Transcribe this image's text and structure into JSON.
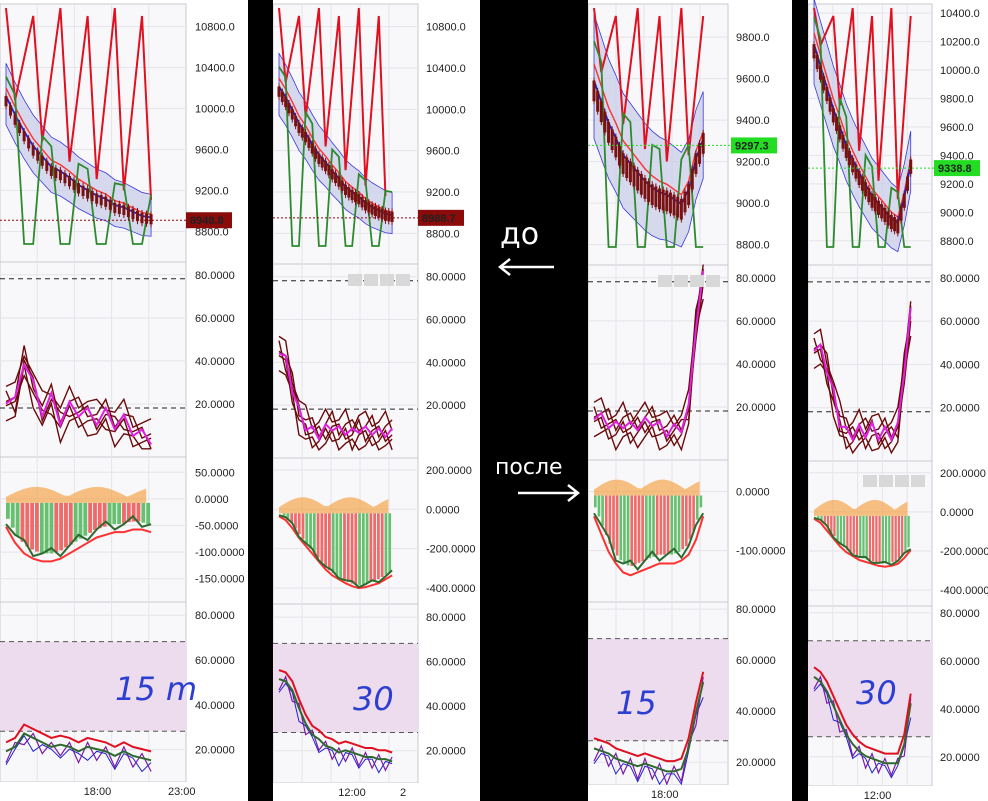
{
  "colors": {
    "separator": "#000000",
    "panel_bg": "#f8f8fa",
    "grid": "#e4e4ea",
    "border": "#c8c8d0",
    "ribbon_fill": "#c8cbe8",
    "ribbon_edge": "#3a3ad8",
    "ma_red": "#ff3030",
    "ma_blue": "#2020d0",
    "zigzag_red": "#e01020",
    "zigzag_green": "#2e8a2e",
    "candle": "#7a1010",
    "stoch_dark": "#6a0a0a",
    "stoch_magenta": "#e020e0",
    "hist_green": "#66c070",
    "hist_red": "#f06a6a",
    "hist_orange": "#f59a30",
    "rsi_band": "#ecdcee",
    "rsi_red": "#e01020",
    "rsi_green": "#2e6a2e",
    "rsi_purple": "#7a1aa8",
    "marker_red": "#8b0a0a",
    "marker_green": "#22dd22",
    "handwriting": "#2d3fd0"
  },
  "panels": [
    {
      "price_axis": [
        "10800.0",
        "10400.0",
        "10000.0",
        "9600.0",
        "9200.0",
        "8800.0"
      ],
      "price_marker": "8948.8",
      "stoch_axis": [
        "80.0000",
        "60.0000",
        "40.0000",
        "20.0000"
      ],
      "macd_axis": [
        "50.0000",
        "0.0000",
        "-50.0000",
        "-100.0000",
        "-150.0000"
      ],
      "rsi_axis": [
        "80.0000",
        "60.0000",
        "40.0000",
        "20.0000"
      ],
      "time_labels": [
        "18:00",
        "23:00"
      ],
      "timeframe_note": "15 m",
      "icon_box": false
    },
    {
      "price_axis": [
        "10800.0",
        "10400.0",
        "10000.0",
        "9600.0",
        "9200.0",
        "8800.0"
      ],
      "price_marker": "8988.7",
      "stoch_axis": [
        "80.0000",
        "60.0000",
        "40.0000",
        "20.0000"
      ],
      "macd_axis": [
        "200.0000",
        "0.0000",
        "-200.0000",
        "-400.0000"
      ],
      "rsi_axis": [
        "80.0000",
        "60.0000",
        "40.0000",
        "20.0000"
      ],
      "time_labels": [
        "12:00",
        "2"
      ],
      "timeframe_note": "30",
      "icon_box": true
    },
    {
      "price_axis": [
        "9800.0",
        "9600.0",
        "9400.0",
        "9200.0",
        "9000.0",
        "8800.0"
      ],
      "price_marker": "9297.3",
      "stoch_axis": [
        "80.0000",
        "60.0000",
        "40.0000",
        "20.0000"
      ],
      "macd_axis": [
        "0.0000",
        "-100.0000"
      ],
      "rsi_axis": [
        "80.0000",
        "60.0000",
        "40.0000",
        "20.0000"
      ],
      "time_labels": [
        "18:00"
      ],
      "timeframe_note": "15",
      "icon_box": true
    },
    {
      "price_axis": [
        "10400.0",
        "10200.0",
        "10000.0",
        "9800.0",
        "9600.0",
        "9400.0",
        "9200.0",
        "9000.0",
        "8800.0"
      ],
      "price_marker": "9338.8",
      "stoch_axis": [
        "80.0000",
        "60.0000",
        "40.0000",
        "20.0000"
      ],
      "macd_axis": [
        "200.0000",
        "0.0000",
        "-200.0000",
        "-400.0000"
      ],
      "rsi_axis": [
        "80.0000",
        "60.0000",
        "40.0000",
        "20.0000"
      ],
      "time_labels": [
        "12:00"
      ],
      "timeframe_note": "30",
      "icon_box": true
    }
  ],
  "notes": {
    "before": "до",
    "after": "после"
  },
  "chart_data": [
    {
      "type": "line",
      "axes": {
        "price_range": [
          8600,
          11000
        ],
        "stoch_range": [
          0,
          85
        ],
        "macd_range": [
          -175,
          75
        ],
        "rsi_range": [
          10,
          85
        ]
      },
      "series": [
        {
          "values": [
            10100,
            9920,
            9760,
            9620,
            9520,
            9420,
            9380,
            9320,
            9250,
            9200,
            9150,
            9120,
            9060,
            9040,
            9000,
            8960,
            8948.8
          ]
        },
        {
          "values": [
            24,
            22,
            42,
            30,
            18,
            24,
            14,
            20,
            18,
            17,
            14,
            17,
            12,
            14,
            9,
            7,
            5
          ]
        },
        {
          "values": [
            -30,
            -60,
            -80,
            -90,
            -95,
            -95,
            -90,
            -80,
            -70,
            -60,
            -50,
            -45,
            -40,
            -40,
            -35,
            -35,
            -40
          ]
        },
        {
          "values": [
            22,
            24,
            30,
            28,
            26,
            24,
            25,
            24,
            22,
            24,
            23,
            22,
            20,
            22,
            20,
            19,
            18
          ]
        }
      ]
    },
    {
      "type": "line",
      "axes": {
        "price_range": [
          8600,
          11000
        ],
        "stoch_range": [
          0,
          85
        ],
        "macd_range": [
          -430,
          250
        ],
        "rsi_range": [
          10,
          85
        ]
      },
      "series": [
        {
          "values": [
            10200,
            10100,
            9980,
            9850,
            9760,
            9650,
            9550,
            9480,
            9400,
            9330,
            9250,
            9200,
            9160,
            9100,
            9060,
            9030,
            9000,
            8988.7
          ]
        },
        {
          "values": [
            48,
            42,
            30,
            18,
            12,
            9,
            8,
            10,
            12,
            9,
            10,
            8,
            11,
            9,
            10,
            8,
            9,
            8
          ]
        },
        {
          "values": [
            0,
            -20,
            -60,
            -110,
            -150,
            -190,
            -230,
            -270,
            -300,
            -320,
            -340,
            -355,
            -365,
            -360,
            -350,
            -340,
            -320,
            -300
          ]
        },
        {
          "values": [
            55,
            54,
            50,
            42,
            35,
            30,
            28,
            25,
            24,
            22,
            23,
            22,
            21,
            20,
            20,
            19,
            19,
            18
          ]
        }
      ]
    },
    {
      "type": "line",
      "axes": {
        "price_range": [
          8750,
          9950
        ],
        "stoch_range": [
          0,
          85
        ],
        "macd_range": [
          -170,
          50
        ],
        "rsi_range": [
          15,
          82
        ]
      },
      "series": [
        {
          "values": [
            9550,
            9450,
            9350,
            9280,
            9200,
            9160,
            9120,
            9080,
            9050,
            9030,
            9020,
            9000,
            8980,
            9050,
            9200,
            9297.3
          ]
        },
        {
          "values": [
            18,
            16,
            14,
            12,
            14,
            12,
            13,
            14,
            15,
            12,
            10,
            11,
            12,
            20,
            60,
            82
          ]
        },
        {
          "values": [
            -20,
            -50,
            -80,
            -100,
            -115,
            -120,
            -115,
            -110,
            -105,
            -100,
            -100,
            -100,
            -95,
            -85,
            -60,
            -20
          ]
        },
        {
          "values": [
            28,
            27,
            26,
            24,
            23,
            22,
            21,
            22,
            21,
            20,
            19,
            19,
            20,
            28,
            42,
            54
          ]
        }
      ]
    },
    {
      "type": "line",
      "axes": {
        "price_range": [
          8700,
          10450
        ],
        "stoch_range": [
          0,
          85
        ],
        "macd_range": [
          -430,
          250
        ],
        "rsi_range": [
          12,
          82
        ]
      },
      "series": [
        {
          "values": [
            10150,
            10000,
            9850,
            9700,
            9580,
            9450,
            9350,
            9260,
            9180,
            9100,
            9050,
            9000,
            8950,
            8920,
            9100,
            9338.8
          ]
        },
        {
          "values": [
            50,
            48,
            40,
            28,
            15,
            10,
            9,
            11,
            10,
            12,
            9,
            10,
            9,
            12,
            40,
            65
          ]
        },
        {
          "values": [
            0,
            -20,
            -60,
            -100,
            -140,
            -170,
            -190,
            -210,
            -220,
            -230,
            -240,
            -245,
            -240,
            -230,
            -200,
            -160
          ]
        },
        {
          "values": [
            56,
            54,
            50,
            44,
            38,
            32,
            28,
            25,
            23,
            22,
            21,
            20,
            20,
            20,
            28,
            45
          ]
        }
      ]
    }
  ]
}
